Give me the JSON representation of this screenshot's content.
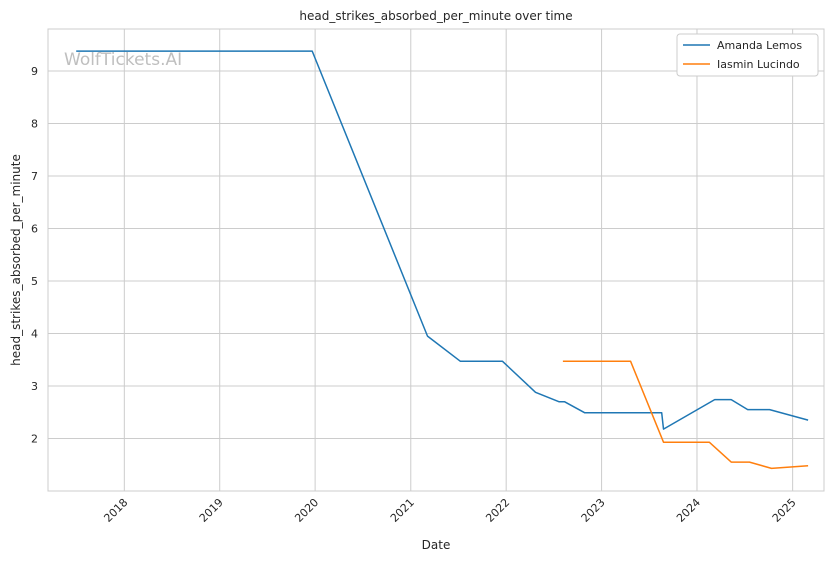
{
  "chart_data": {
    "type": "line",
    "title": "head_strikes_absorbed_per_minute over time",
    "xlabel": "Date",
    "ylabel": "head_strikes_absorbed_per_minute",
    "watermark": "WolfTickets.AI",
    "x_ticks": [
      "2018",
      "2019",
      "2020",
      "2021",
      "2022",
      "2023",
      "2024",
      "2025"
    ],
    "y_ticks": [
      2,
      3,
      4,
      5,
      6,
      7,
      8,
      9
    ],
    "xlim": [
      "2017-03-15",
      "2025-05-01"
    ],
    "ylim": [
      1.0,
      9.8
    ],
    "grid": true,
    "legend_position": "top-right",
    "series": [
      {
        "name": "Amanda Lemos",
        "color": "#1f77b4",
        "points": [
          {
            "x": "2017-07-01",
            "y": 9.38
          },
          {
            "x": "2019-12-21",
            "y": 9.38
          },
          {
            "x": "2021-03-06",
            "y": 3.95
          },
          {
            "x": "2021-07-10",
            "y": 3.47
          },
          {
            "x": "2021-12-18",
            "y": 3.47
          },
          {
            "x": "2022-04-23",
            "y": 2.88
          },
          {
            "x": "2022-07-23",
            "y": 2.7
          },
          {
            "x": "2022-08-13",
            "y": 2.7
          },
          {
            "x": "2022-10-29",
            "y": 2.49
          },
          {
            "x": "2023-08-19",
            "y": 2.49
          },
          {
            "x": "2023-08-26",
            "y": 2.18
          },
          {
            "x": "2024-03-09",
            "y": 2.74
          },
          {
            "x": "2024-05-11",
            "y": 2.74
          },
          {
            "x": "2024-07-13",
            "y": 2.55
          },
          {
            "x": "2024-10-05",
            "y": 2.55
          },
          {
            "x": "2025-03-01",
            "y": 2.35
          }
        ]
      },
      {
        "name": "Iasmin Lucindo",
        "color": "#ff7f0e",
        "points": [
          {
            "x": "2022-08-06",
            "y": 3.47
          },
          {
            "x": "2023-04-22",
            "y": 3.47
          },
          {
            "x": "2023-08-26",
            "y": 1.93
          },
          {
            "x": "2024-02-17",
            "y": 1.93
          },
          {
            "x": "2024-05-11",
            "y": 1.55
          },
          {
            "x": "2024-07-20",
            "y": 1.55
          },
          {
            "x": "2024-10-12",
            "y": 1.43
          },
          {
            "x": "2025-03-01",
            "y": 1.48
          }
        ]
      }
    ]
  }
}
